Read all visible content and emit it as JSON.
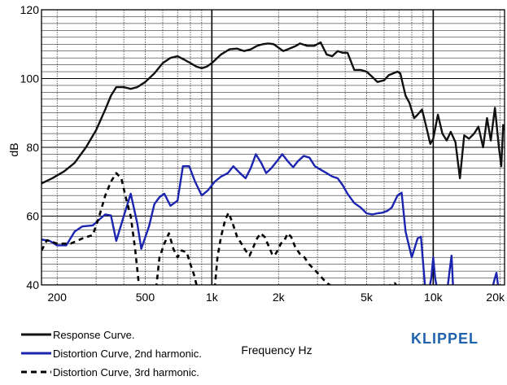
{
  "chart_data": {
    "type": "line",
    "xlabel": "Frequency Hz",
    "ylabel": "dB",
    "xscale": "log",
    "xlim": [
      170,
      21000
    ],
    "ylim": [
      40,
      120
    ],
    "x_ticks": [
      200,
      500,
      1000,
      2000,
      5000,
      10000,
      20000
    ],
    "x_tick_labels": [
      "200",
      "500",
      "1k",
      "2k",
      "5k",
      "10k",
      "20k"
    ],
    "y_ticks": [
      40,
      60,
      80,
      100,
      120
    ],
    "y_tick_labels": [
      "40",
      "60",
      "80",
      "100",
      "120"
    ],
    "grid": true,
    "legend_position": "bottom-left",
    "series": [
      {
        "name": "Response Curve.",
        "color": "#111111",
        "style": "solid",
        "points": [
          [
            170,
            69.5
          ],
          [
            190,
            71
          ],
          [
            215,
            73
          ],
          [
            240,
            75.5
          ],
          [
            270,
            80
          ],
          [
            300,
            85
          ],
          [
            330,
            91
          ],
          [
            350,
            95
          ],
          [
            370,
            97.5
          ],
          [
            400,
            97.5
          ],
          [
            430,
            97
          ],
          [
            460,
            97.5
          ],
          [
            500,
            99
          ],
          [
            550,
            101.5
          ],
          [
            600,
            104.5
          ],
          [
            650,
            106
          ],
          [
            700,
            106.5
          ],
          [
            750,
            105.5
          ],
          [
            800,
            104.5
          ],
          [
            850,
            103.5
          ],
          [
            900,
            103
          ],
          [
            950,
            103.5
          ],
          [
            1000,
            104.5
          ],
          [
            1100,
            107
          ],
          [
            1200,
            108.5
          ],
          [
            1300,
            108.7
          ],
          [
            1400,
            108
          ],
          [
            1500,
            108.5
          ],
          [
            1600,
            109.5
          ],
          [
            1700,
            110
          ],
          [
            1800,
            110.2
          ],
          [
            1900,
            110
          ],
          [
            2000,
            109
          ],
          [
            2100,
            108
          ],
          [
            2200,
            108.5
          ],
          [
            2400,
            109.5
          ],
          [
            2500,
            110.2
          ],
          [
            2700,
            109.5
          ],
          [
            2900,
            109.5
          ],
          [
            3100,
            110.5
          ],
          [
            3300,
            107
          ],
          [
            3500,
            106.5
          ],
          [
            3700,
            108
          ],
          [
            3900,
            107.5
          ],
          [
            4100,
            107.5
          ],
          [
            4400,
            102.5
          ],
          [
            4700,
            102.5
          ],
          [
            5000,
            102
          ],
          [
            5300,
            100.5
          ],
          [
            5600,
            99
          ],
          [
            6000,
            99.5
          ],
          [
            6300,
            101
          ],
          [
            6600,
            101.5
          ],
          [
            6900,
            102
          ],
          [
            7100,
            101.5
          ],
          [
            7500,
            95
          ],
          [
            7800,
            93
          ],
          [
            8200,
            88.5
          ],
          [
            8500,
            89.5
          ],
          [
            8900,
            91
          ],
          [
            9300,
            86
          ],
          [
            9700,
            81
          ],
          [
            10000,
            82.5
          ],
          [
            10500,
            89.5
          ],
          [
            11000,
            84
          ],
          [
            11500,
            82
          ],
          [
            12000,
            84.5
          ],
          [
            12600,
            81.5
          ],
          [
            13200,
            71
          ],
          [
            13800,
            83.5
          ],
          [
            14500,
            82.5
          ],
          [
            15300,
            84
          ],
          [
            16000,
            86
          ],
          [
            16800,
            80
          ],
          [
            17500,
            88.5
          ],
          [
            18200,
            82
          ],
          [
            19000,
            91.5
          ],
          [
            19800,
            80
          ],
          [
            20300,
            74.5
          ],
          [
            20700,
            86.5
          ],
          [
            21000,
            85
          ]
        ]
      },
      {
        "name": "Distortion Curve, 2nd harmonic.",
        "color": "#1c25b0",
        "style": "solid",
        "points": [
          [
            170,
            53.2
          ],
          [
            185,
            52.8
          ],
          [
            200,
            51.5
          ],
          [
            220,
            51.5
          ],
          [
            240,
            55.5
          ],
          [
            260,
            57
          ],
          [
            290,
            57.3
          ],
          [
            310,
            59
          ],
          [
            330,
            60.5
          ],
          [
            350,
            60.2
          ],
          [
            370,
            52.8
          ],
          [
            400,
            60
          ],
          [
            430,
            66.5
          ],
          [
            460,
            58
          ],
          [
            480,
            50.5
          ],
          [
            520,
            57
          ],
          [
            550,
            63.5
          ],
          [
            580,
            65.5
          ],
          [
            610,
            66.5
          ],
          [
            650,
            63
          ],
          [
            700,
            64.5
          ],
          [
            740,
            74.5
          ],
          [
            790,
            74.5
          ],
          [
            840,
            70
          ],
          [
            900,
            66
          ],
          [
            960,
            67.5
          ],
          [
            1030,
            70
          ],
          [
            1100,
            71.5
          ],
          [
            1180,
            72.5
          ],
          [
            1250,
            74.5
          ],
          [
            1340,
            72.5
          ],
          [
            1420,
            71
          ],
          [
            1500,
            74
          ],
          [
            1580,
            78
          ],
          [
            1670,
            75.5
          ],
          [
            1760,
            72.5
          ],
          [
            1860,
            74
          ],
          [
            1970,
            76
          ],
          [
            2080,
            78
          ],
          [
            2200,
            76
          ],
          [
            2330,
            74.2
          ],
          [
            2450,
            76
          ],
          [
            2600,
            77.5
          ],
          [
            2760,
            77
          ],
          [
            2920,
            74.5
          ],
          [
            3100,
            73.5
          ],
          [
            3300,
            72.5
          ],
          [
            3500,
            71.5
          ],
          [
            3700,
            71
          ],
          [
            3900,
            69
          ],
          [
            4100,
            66.5
          ],
          [
            4400,
            63.8
          ],
          [
            4700,
            62.5
          ],
          [
            5000,
            60.8
          ],
          [
            5300,
            60.5
          ],
          [
            5600,
            60.8
          ],
          [
            5900,
            61
          ],
          [
            6200,
            61.5
          ],
          [
            6500,
            62.5
          ],
          [
            6900,
            66
          ],
          [
            7200,
            66.8
          ],
          [
            7500,
            55.5
          ],
          [
            8000,
            48
          ],
          [
            8500,
            53.5
          ],
          [
            8800,
            54
          ],
          [
            9200,
            39
          ]
        ]
      },
      {
        "name": "Distortion Curve, 3rd harmonic.",
        "color": "#000000",
        "style": "dashed",
        "points": [
          [
            170,
            50
          ],
          [
            180,
            53
          ],
          [
            200,
            52
          ],
          [
            230,
            52
          ],
          [
            260,
            53.5
          ],
          [
            290,
            54.5
          ],
          [
            310,
            60
          ],
          [
            330,
            66
          ],
          [
            350,
            70
          ],
          [
            370,
            72.5
          ],
          [
            390,
            71
          ],
          [
            410,
            65
          ],
          [
            430,
            60
          ],
          [
            450,
            50.5
          ],
          [
            470,
            39
          ]
        ]
      },
      {
        "name": "Distortion Curve, 3rd harmonic. (segment 2)",
        "color": "#000000",
        "style": "dashed",
        "points": [
          [
            560,
            39
          ],
          [
            580,
            48
          ],
          [
            610,
            52
          ],
          [
            640,
            55
          ],
          [
            670,
            50.5
          ],
          [
            700,
            48
          ],
          [
            730,
            50
          ],
          [
            770,
            49.5
          ],
          [
            800,
            46
          ],
          [
            830,
            43
          ],
          [
            860,
            39
          ]
        ]
      },
      {
        "name": "Distortion Curve, 3rd harmonic. (segment 3)",
        "color": "#000000",
        "style": "dashed",
        "points": [
          [
            1030,
            39
          ],
          [
            1060,
            48
          ],
          [
            1100,
            54
          ],
          [
            1150,
            59
          ],
          [
            1190,
            61
          ],
          [
            1240,
            58
          ],
          [
            1300,
            54
          ],
          [
            1360,
            52
          ],
          [
            1420,
            50
          ],
          [
            1480,
            48.5
          ],
          [
            1540,
            51
          ],
          [
            1600,
            53.5
          ],
          [
            1660,
            55
          ],
          [
            1730,
            54
          ],
          [
            1800,
            51.5
          ],
          [
            1870,
            49
          ],
          [
            1920,
            48.5
          ],
          [
            1980,
            50
          ],
          [
            2050,
            52
          ],
          [
            2130,
            53
          ],
          [
            2200,
            55
          ],
          [
            2280,
            54
          ],
          [
            2380,
            51
          ],
          [
            2500,
            49
          ],
          [
            2620,
            48
          ],
          [
            2750,
            46
          ],
          [
            2900,
            44.5
          ],
          [
            3050,
            43
          ],
          [
            3200,
            41.5
          ],
          [
            3350,
            40.3
          ],
          [
            3500,
            39.5
          ]
        ]
      },
      {
        "name": "Distortion Curve, 3rd harmonic. (segment 4)",
        "color": "#000000",
        "style": "dashed",
        "points": [
          [
            6200,
            39
          ],
          [
            6400,
            40
          ],
          [
            6700,
            40.5
          ],
          [
            7000,
            39
          ]
        ]
      },
      {
        "name": "Distortion Curve, 2nd harmonic. (segment 2)",
        "color": "#1c25b0",
        "style": "solid",
        "points": [
          [
            9600,
            39
          ],
          [
            9800,
            42
          ],
          [
            10000,
            48
          ],
          [
            10200,
            42
          ],
          [
            10400,
            39
          ]
        ]
      },
      {
        "name": "Distortion Curve, 2nd harmonic. (segment 3)",
        "color": "#1c25b0",
        "style": "solid",
        "points": [
          [
            11600,
            39
          ],
          [
            11850,
            44
          ],
          [
            12100,
            48.5
          ],
          [
            12300,
            39
          ]
        ]
      },
      {
        "name": "Distortion Curve, 2nd harmonic. (segment 4)",
        "color": "#1c25b0",
        "style": "solid",
        "points": [
          [
            18500,
            39
          ],
          [
            18900,
            41.5
          ],
          [
            19300,
            43.5
          ],
          [
            19700,
            39
          ]
        ]
      }
    ],
    "legend": [
      {
        "label": "Response Curve.",
        "color": "#111111",
        "style": "solid"
      },
      {
        "label": "Distortion Curve, 2nd harmonic.",
        "color": "#1c25b0",
        "style": "solid"
      },
      {
        "label": "Distortion Curve, 3rd harmonic.",
        "color": "#000000",
        "style": "dashed"
      }
    ]
  },
  "brand": {
    "text": "KLIPPEL",
    "color": "#1f63ad"
  }
}
